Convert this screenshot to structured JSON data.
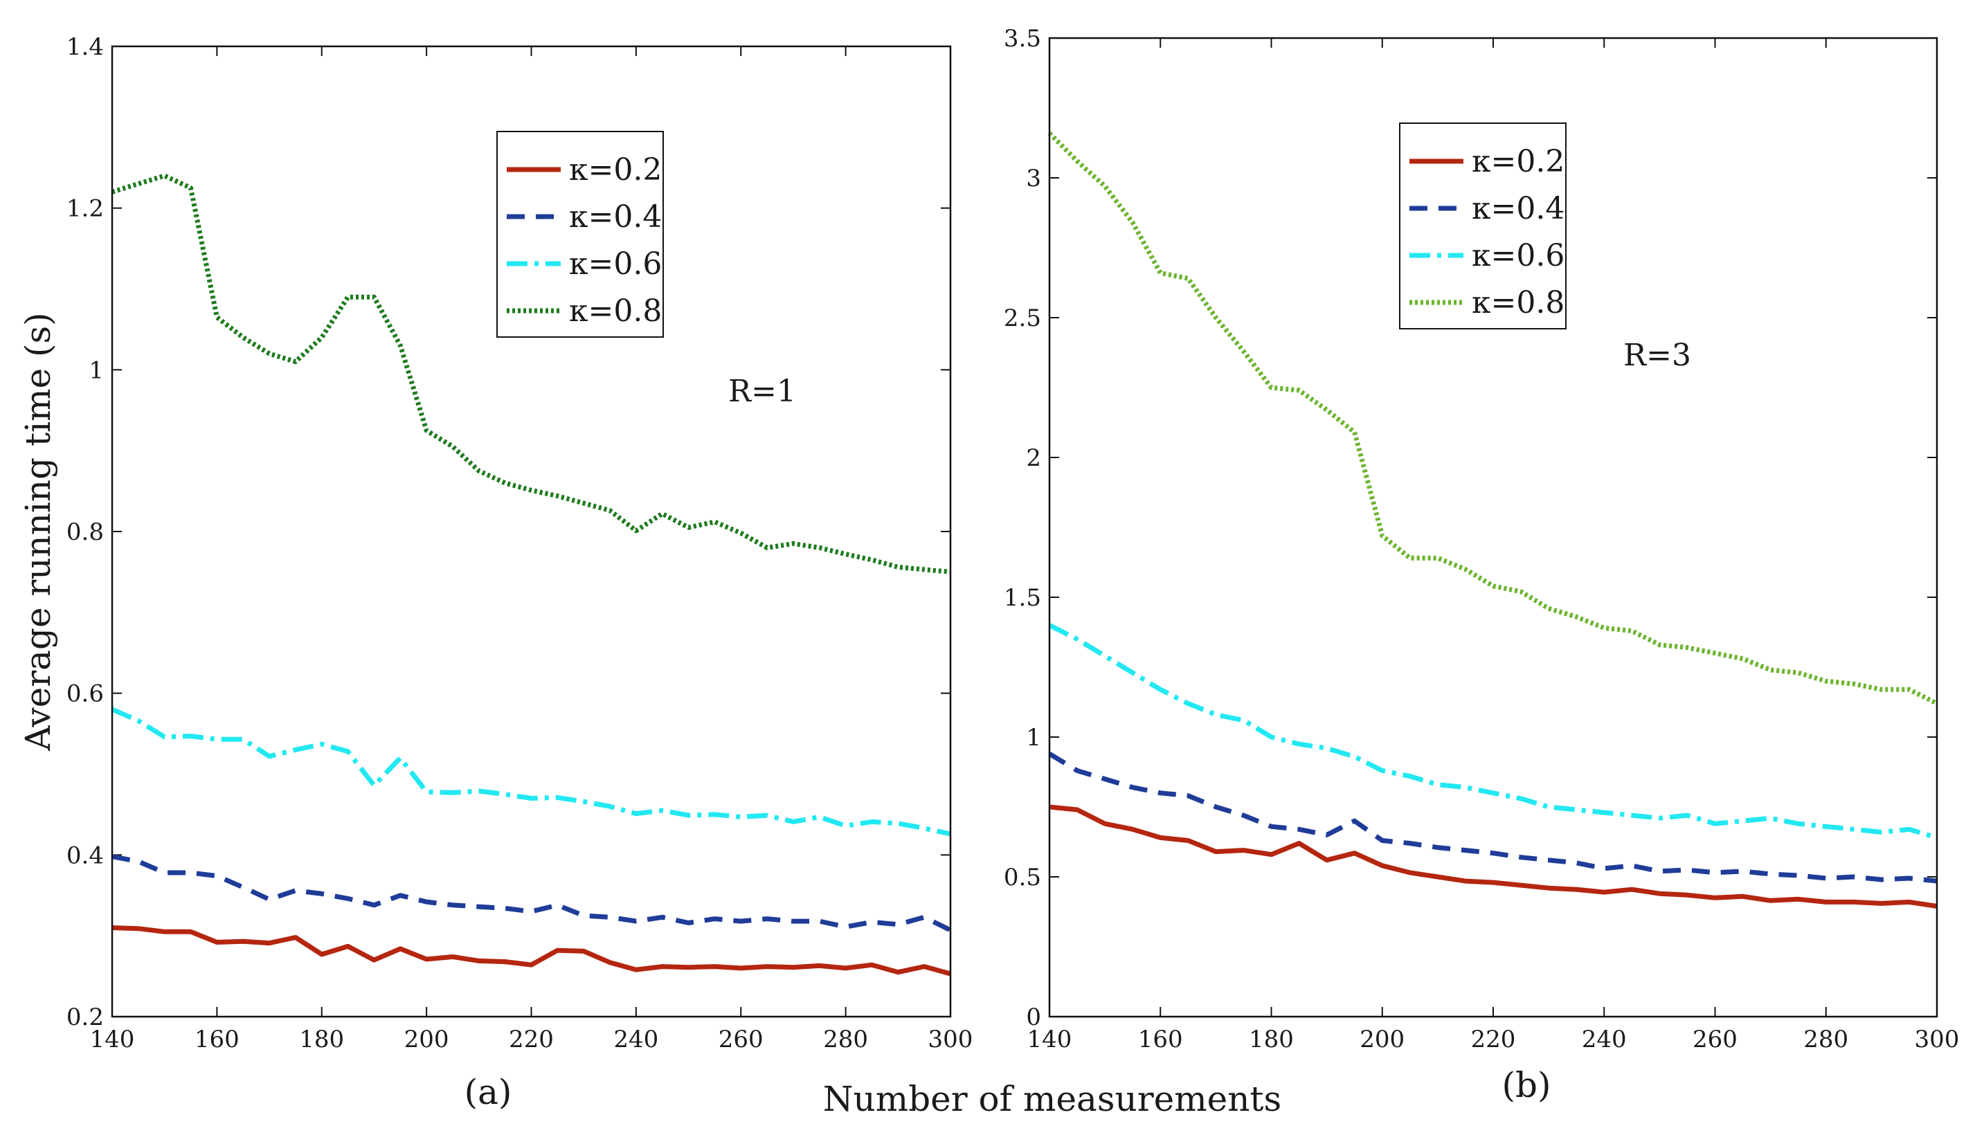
{
  "figure": {
    "shared_xlabel": "Number of measurements"
  },
  "chart_data": [
    {
      "type": "line",
      "panel_label": "(a)",
      "annotation": "R=1",
      "xlabel": "Number of measurements",
      "ylabel": "Average running time (s)",
      "xlim": [
        140,
        300
      ],
      "ylim": [
        0.2,
        1.4
      ],
      "xticks": [
        "140",
        "160",
        "180",
        "200",
        "220",
        "240",
        "260",
        "280",
        "300"
      ],
      "yticks": [
        "0.2",
        "0.4",
        "0.6",
        "0.8",
        "1",
        "1.2",
        "1.4"
      ],
      "x": [
        140,
        145,
        150,
        155,
        160,
        165,
        170,
        175,
        180,
        185,
        190,
        195,
        200,
        205,
        210,
        215,
        220,
        225,
        230,
        235,
        240,
        245,
        250,
        255,
        260,
        265,
        270,
        275,
        280,
        285,
        290,
        295,
        300
      ],
      "series": [
        {
          "name": "κ=0.2",
          "color": "#b5260f",
          "dash": "solid",
          "values": [
            0.31,
            0.309,
            0.305,
            0.305,
            0.292,
            0.293,
            0.291,
            0.298,
            0.277,
            0.287,
            0.27,
            0.284,
            0.271,
            0.274,
            0.269,
            0.268,
            0.264,
            0.282,
            0.281,
            0.267,
            0.258,
            0.262,
            0.261,
            0.262,
            0.26,
            0.262,
            0.261,
            0.263,
            0.26,
            0.264,
            0.255,
            0.262,
            0.253
          ]
        },
        {
          "name": "κ=0.4",
          "color": "#1f3c98",
          "dash": "dashed",
          "values": [
            0.398,
            0.392,
            0.378,
            0.378,
            0.374,
            0.36,
            0.345,
            0.356,
            0.352,
            0.346,
            0.338,
            0.35,
            0.342,
            0.338,
            0.336,
            0.334,
            0.33,
            0.338,
            0.325,
            0.323,
            0.318,
            0.323,
            0.316,
            0.321,
            0.318,
            0.321,
            0.318,
            0.318,
            0.311,
            0.317,
            0.314,
            0.323,
            0.307
          ]
        },
        {
          "name": "κ=0.6",
          "color": "#22e8f2",
          "dash": "dashdot",
          "values": [
            0.58,
            0.566,
            0.546,
            0.547,
            0.543,
            0.543,
            0.522,
            0.53,
            0.537,
            0.528,
            0.486,
            0.52,
            0.478,
            0.477,
            0.479,
            0.475,
            0.47,
            0.471,
            0.466,
            0.46,
            0.451,
            0.455,
            0.449,
            0.45,
            0.447,
            0.449,
            0.441,
            0.447,
            0.436,
            0.441,
            0.439,
            0.433,
            0.426
          ]
        },
        {
          "name": "κ=0.8",
          "color": "#1b7a1b",
          "dash": "dotted",
          "values": [
            1.22,
            1.23,
            1.24,
            1.225,
            1.065,
            1.04,
            1.02,
            1.01,
            1.04,
            1.09,
            1.09,
            1.03,
            0.925,
            0.905,
            0.875,
            0.86,
            0.851,
            0.844,
            0.835,
            0.826,
            0.801,
            0.822,
            0.805,
            0.812,
            0.798,
            0.78,
            0.785,
            0.78,
            0.772,
            0.765,
            0.756,
            0.753,
            0.75
          ]
        }
      ]
    },
    {
      "type": "line",
      "panel_label": "(b)",
      "annotation": "R=3",
      "xlabel": "Number of measurements",
      "ylabel": "",
      "xlim": [
        140,
        300
      ],
      "ylim": [
        0,
        3.5
      ],
      "xticks": [
        "140",
        "160",
        "180",
        "200",
        "220",
        "240",
        "260",
        "280",
        "300"
      ],
      "yticks": [
        "0",
        "0.5",
        "1",
        "1.5",
        "2",
        "2.5",
        "3",
        "3.5"
      ],
      "x": [
        140,
        145,
        150,
        155,
        160,
        165,
        170,
        175,
        180,
        185,
        190,
        195,
        200,
        205,
        210,
        215,
        220,
        225,
        230,
        235,
        240,
        245,
        250,
        255,
        260,
        265,
        270,
        275,
        280,
        285,
        290,
        295,
        300
      ],
      "series": [
        {
          "name": "κ=0.2",
          "color": "#b5260f",
          "dash": "solid",
          "values": [
            0.75,
            0.74,
            0.69,
            0.67,
            0.64,
            0.63,
            0.59,
            0.595,
            0.58,
            0.62,
            0.56,
            0.585,
            0.54,
            0.515,
            0.5,
            0.485,
            0.48,
            0.47,
            0.46,
            0.455,
            0.445,
            0.455,
            0.44,
            0.435,
            0.425,
            0.43,
            0.415,
            0.42,
            0.41,
            0.41,
            0.405,
            0.41,
            0.395
          ]
        },
        {
          "name": "κ=0.4",
          "color": "#1f3c98",
          "dash": "dashed",
          "values": [
            0.94,
            0.88,
            0.85,
            0.82,
            0.8,
            0.79,
            0.75,
            0.72,
            0.68,
            0.67,
            0.65,
            0.7,
            0.63,
            0.62,
            0.605,
            0.595,
            0.585,
            0.57,
            0.56,
            0.55,
            0.53,
            0.54,
            0.52,
            0.525,
            0.515,
            0.52,
            0.51,
            0.505,
            0.495,
            0.5,
            0.49,
            0.495,
            0.485
          ]
        },
        {
          "name": "κ=0.6",
          "color": "#22e8f2",
          "dash": "dashdot",
          "values": [
            1.4,
            1.35,
            1.29,
            1.23,
            1.17,
            1.12,
            1.08,
            1.06,
            1.0,
            0.975,
            0.96,
            0.93,
            0.88,
            0.86,
            0.83,
            0.82,
            0.8,
            0.78,
            0.75,
            0.74,
            0.73,
            0.72,
            0.71,
            0.72,
            0.69,
            0.7,
            0.71,
            0.69,
            0.68,
            0.67,
            0.66,
            0.67,
            0.64
          ]
        },
        {
          "name": "κ=0.8",
          "color": "#6ab42c",
          "dash": "dotted",
          "values": [
            3.16,
            3.06,
            2.97,
            2.84,
            2.66,
            2.64,
            2.5,
            2.38,
            2.25,
            2.24,
            2.17,
            2.09,
            1.72,
            1.64,
            1.64,
            1.6,
            1.54,
            1.52,
            1.46,
            1.43,
            1.39,
            1.38,
            1.33,
            1.32,
            1.3,
            1.28,
            1.24,
            1.23,
            1.2,
            1.19,
            1.17,
            1.17,
            1.12
          ]
        }
      ]
    }
  ]
}
